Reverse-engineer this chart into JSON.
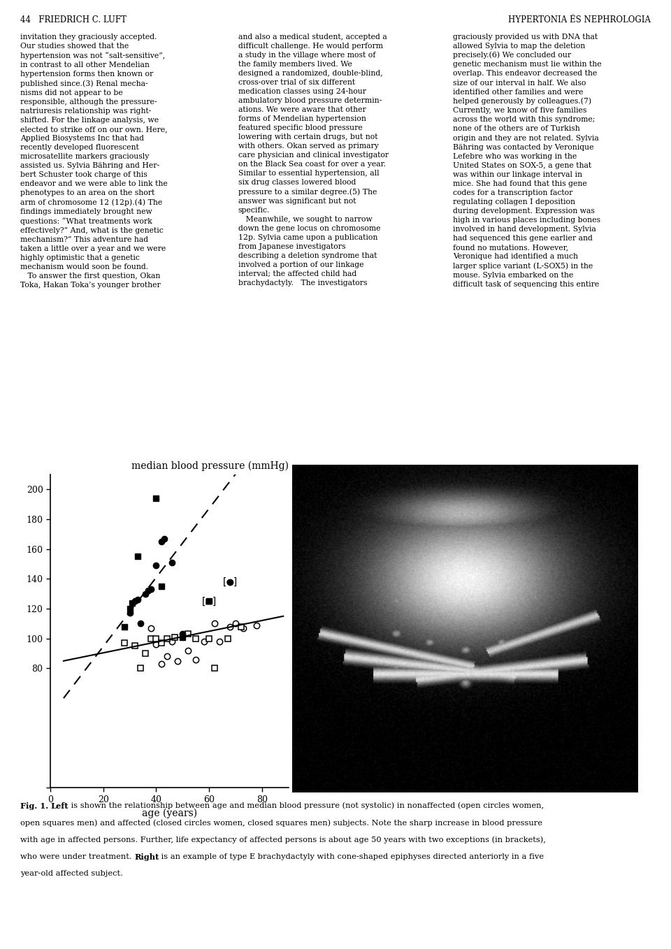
{
  "page_title_left": "44   FRIEDRICH C. LUFT",
  "page_title_right": "HYPERTONIA ÉS NEPHROLOGIA",
  "chart_title": "median blood pressure (mmHg)",
  "xlabel": "age (years)",
  "ylim": [
    0,
    210
  ],
  "xlim": [
    0,
    90
  ],
  "yticks": [
    0,
    80,
    100,
    120,
    140,
    160,
    180,
    200
  ],
  "xticks": [
    0,
    20,
    40,
    60,
    80
  ],
  "affected_circles_women": [
    [
      30,
      117
    ],
    [
      32,
      125
    ],
    [
      33,
      126
    ],
    [
      34,
      110
    ],
    [
      36,
      130
    ],
    [
      37,
      132
    ],
    [
      38,
      133
    ],
    [
      40,
      149
    ],
    [
      42,
      165
    ],
    [
      43,
      167
    ],
    [
      46,
      151
    ],
    [
      50,
      103
    ]
  ],
  "affected_squares_men": [
    [
      28,
      108
    ],
    [
      30,
      120
    ],
    [
      31,
      124
    ],
    [
      33,
      155
    ],
    [
      40,
      194
    ],
    [
      42,
      135
    ],
    [
      50,
      101
    ]
  ],
  "nonaffected_circles_women": [
    [
      38,
      107
    ],
    [
      40,
      96
    ],
    [
      42,
      83
    ],
    [
      44,
      88
    ],
    [
      46,
      98
    ],
    [
      48,
      85
    ],
    [
      52,
      92
    ],
    [
      55,
      86
    ],
    [
      58,
      98
    ],
    [
      62,
      110
    ],
    [
      64,
      98
    ],
    [
      68,
      108
    ],
    [
      70,
      110
    ],
    [
      73,
      107
    ],
    [
      78,
      109
    ]
  ],
  "nonaffected_squares_men": [
    [
      28,
      97
    ],
    [
      32,
      95
    ],
    [
      34,
      80
    ],
    [
      36,
      90
    ],
    [
      38,
      100
    ],
    [
      40,
      100
    ],
    [
      42,
      97
    ],
    [
      44,
      100
    ],
    [
      47,
      101
    ],
    [
      52,
      103
    ],
    [
      55,
      100
    ],
    [
      60,
      100
    ],
    [
      62,
      80
    ],
    [
      67,
      100
    ],
    [
      72,
      108
    ]
  ],
  "bracketed_circle": [
    68,
    138
  ],
  "bracketed_square": [
    60,
    125
  ],
  "dashed_line_x": [
    5,
    72
  ],
  "dashed_line_y": [
    60,
    215
  ],
  "solid_line_x": [
    5,
    88
  ],
  "solid_line_y": [
    85,
    115
  ],
  "marker_size": 6,
  "col1_text": "invitation they graciously accepted.\nOur studies showed that the\nhypertension was not “salt-sensitive”,\nin contrast to all other Mendelian\nhypertension forms then known or\npublished since.(3) Renal mecha-\nnisms did not appear to be\nresponsible, although the pressure-\nnatriuresis relationship was right-\nshifted. For the linkage analysis, we\nelected to strike off on our own. Here,\nApplied Biosystems Inc that had\nrecently developed fluorescent\nmicrosatellite markers graciously\nassisted us. Sylvia Bähring and Her-\nbert Schuster took charge of this\nendeavor and we were able to link the\nphenotypes to an area on the short\narm of chromosome 12 (12p).(4) The\nfindings immediately brought new\nquestions: “What treatments work\neffectively?” And, what is the genetic\nmechanism?” This adventure had\ntaken a little over a year and we were\nhighly optimistic that a genetic\nmechanism would soon be found.\n   To answer the first question, Okan\nToka, Hakan Toka’s younger brother",
  "col2_text": "and also a medical student, accepted a\ndifficult challenge. He would perform\na study in the village where most of\nthe family members lived. We\ndesigned a randomized, double-blind,\ncross-over trial of six different\nmedication classes using 24-hour\nambulatory blood pressure determin-\nations. We were aware that other\nforms of Mendelian hypertension\nfeatured specific blood pressure\nlowering with certain drugs, but not\nwith others. Okan served as primary\ncare physician and clinical investigator\non the Black Sea coast for over a year.\nSimilar to essential hypertension, all\nsix drug classes lowered blood\npressure to a similar degree.(5) The\nanswer was significant but not\nspecific.\n   Meanwhile, we sought to narrow\ndown the gene locus on chromosome\n12p. Sylvia came upon a publication\nfrom Japanese investigators\ndescribing a deletion syndrome that\ninvolved a portion of our linkage\ninterval; the affected child had\nbrachydactyly.   The investigators",
  "col3_text": "graciously provided us with DNA that\nallowed Sylvia to map the deletion\nprecisely.(6) We concluded our\ngenetic mechanism must lie within the\noverlap. This endeavor decreased the\nsize of our interval in half. We also\nidentified other families and were\nhelped generously by colleagues.(7)\nCurrently, we know of five families\nacross the world with this syndrome;\nnone of the others are of Turkish\norigin and they are not related. Sylvia\nBähring was contacted by Veronique\nLefebre who was working in the\nUnited States on SOX-5, a gene that\nwas within our linkage interval in\nmice. She had found that this gene\ncodes for a transcription factor\nregulating collagen I deposition\nduring development. Expression was\nhigh in various places including bones\ninvolved in hand development. Sylvia\nhad sequenced this gene earlier and\nfound no mutations. However,\nVeronique had identified a much\nlarger splice variant (L-SOX5) in the\nmouse. Sylvia embarked on the\ndifficult task of sequencing this entire",
  "caption_bold_start": "Fig. 1. ",
  "caption_left_label": "Left",
  "caption_text": " is shown the relationship between age and median blood pressure (not systolic) in nonaffected (open circles women, open squares men) and affected (closed circles women, closed squares men) subjects. Note the sharp increase in blood pressure with age in affected persons. Further, life expectancy of affected persons is about age 50 years with two exceptions (in brackets), who were under treatment. ",
  "caption_right_label": "Right",
  "caption_text2": " is an example of type E brachydactyly with cone-shaped epiphyses directed anteriorly in a five year-old affected subject.",
  "background_color": "#ffffff"
}
